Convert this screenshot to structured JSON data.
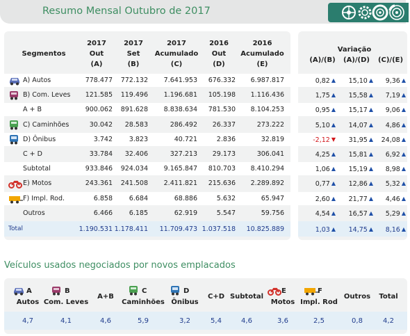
{
  "title": "Resumo Mensal Outubro de 2017",
  "header_icons": [
    "wheel-icon",
    "gear-icon",
    "tire-icon",
    "brake-disc-icon"
  ],
  "table": {
    "seg_header": "Segmentos",
    "columns": [
      {
        "l1": "2017",
        "l2": "Out",
        "l3": "(A)"
      },
      {
        "l1": "2017",
        "l2": "Set",
        "l3": "(B)"
      },
      {
        "l1": "2017",
        "l2": "Acumulado",
        "l3": "(C)"
      },
      {
        "l1": "2016",
        "l2": "Out",
        "l3": "(D)"
      },
      {
        "l1": "2016",
        "l2": "Acumulado",
        "l3": "(E)"
      }
    ],
    "variation_header": "Variação",
    "variation_columns": [
      "(A)/(B)",
      "(A)/(D)",
      "(C)/(E)"
    ],
    "rows": [
      {
        "label": "A) Autos",
        "icon": "car-icon",
        "values": [
          "778.477",
          "772.132",
          "7.641.953",
          "676.332",
          "6.987.817"
        ],
        "var": [
          "0,82",
          "15,10",
          "9,36"
        ],
        "dir": [
          "up",
          "up",
          "up"
        ]
      },
      {
        "label": "B) Com. Leves",
        "icon": "van-icon",
        "values": [
          "121.585",
          "119.496",
          "1.196.681",
          "105.198",
          "1.116.436"
        ],
        "var": [
          "1,75",
          "15,58",
          "7,19"
        ],
        "dir": [
          "up",
          "up",
          "up"
        ]
      },
      {
        "label": "A + B",
        "icon": "",
        "values": [
          "900.062",
          "891.628",
          "8.838.634",
          "781.530",
          "8.104.253"
        ],
        "var": [
          "0,95",
          "15,17",
          "9,06"
        ],
        "dir": [
          "up",
          "up",
          "up"
        ]
      },
      {
        "label": "C) Caminhões",
        "icon": "truck-icon",
        "values": [
          "30.042",
          "28.583",
          "286.492",
          "26.337",
          "273.222"
        ],
        "var": [
          "5,10",
          "14,07",
          "4,86"
        ],
        "dir": [
          "up",
          "up",
          "up"
        ]
      },
      {
        "label": "D) Ônibus",
        "icon": "bus-icon",
        "values": [
          "3.742",
          "3.823",
          "40.721",
          "2.836",
          "32.819"
        ],
        "var": [
          "-2,12",
          "31,95",
          "24,08"
        ],
        "dir": [
          "down",
          "up",
          "up"
        ]
      },
      {
        "label": "C + D",
        "icon": "",
        "values": [
          "33.784",
          "32.406",
          "327.213",
          "29.173",
          "306.041"
        ],
        "var": [
          "4,25",
          "15,81",
          "6,92"
        ],
        "dir": [
          "up",
          "up",
          "up"
        ]
      },
      {
        "label": "Subtotal",
        "icon": "",
        "values": [
          "933.846",
          "924.034",
          "9.165.847",
          "810.703",
          "8.410.294"
        ],
        "var": [
          "1,06",
          "15,19",
          "8,98"
        ],
        "dir": [
          "up",
          "up",
          "up"
        ]
      },
      {
        "label": "E) Motos",
        "icon": "motorcycle-icon",
        "values": [
          "243.361",
          "241.508",
          "2.411.821",
          "215.636",
          "2.289.892"
        ],
        "var": [
          "0,77",
          "12,86",
          "5,32"
        ],
        "dir": [
          "up",
          "up",
          "up"
        ]
      },
      {
        "label": "F) Impl. Rod.",
        "icon": "trailer-icon",
        "values": [
          "6.858",
          "6.684",
          "68.886",
          "5.632",
          "65.947"
        ],
        "var": [
          "2,60",
          "21,77",
          "4,46"
        ],
        "dir": [
          "up",
          "up",
          "up"
        ]
      },
      {
        "label": "Outros",
        "icon": "",
        "values": [
          "6.466",
          "6.185",
          "62.919",
          "5.547",
          "59.756"
        ],
        "var": [
          "4,54",
          "16,57",
          "5,29"
        ],
        "dir": [
          "up",
          "up",
          "up"
        ]
      }
    ],
    "total": {
      "label": "Total",
      "values": [
        "1.190.531",
        "1.178.411",
        "11.709.473",
        "1.037.518",
        "10.825.889"
      ],
      "var": [
        "1,03",
        "14,75",
        "8,16"
      ],
      "dir": [
        "up",
        "up",
        "up"
      ]
    }
  },
  "used": {
    "title": "Veículos usados negociados por novos emplacados",
    "columns": [
      {
        "l1": "A",
        "l2": "Autos",
        "icon": "car-icon",
        "value": "4,7"
      },
      {
        "l1": "B",
        "l2": "Com. Leves",
        "icon": "van-icon",
        "value": "4,1"
      },
      {
        "l1": "A+B",
        "l2": "",
        "icon": "",
        "value": "4,6"
      },
      {
        "l1": "C",
        "l2": "Caminhões",
        "icon": "truck-icon",
        "value": "5,9"
      },
      {
        "l1": "D",
        "l2": "Ônibus",
        "icon": "bus-icon",
        "value": "3,2"
      },
      {
        "l1": "C+D",
        "l2": "",
        "icon": "",
        "value": "5,4"
      },
      {
        "l1": "Subtotal",
        "l2": "",
        "icon": "",
        "value": "4,6"
      },
      {
        "l1": "E",
        "l2": "Motos",
        "icon": "motorcycle-icon",
        "value": "3,6"
      },
      {
        "l1": "F",
        "l2": "Impl. Rod",
        "icon": "trailer-icon",
        "value": "2,5"
      },
      {
        "l1": "Outros",
        "l2": "",
        "icon": "",
        "value": "0,8"
      },
      {
        "l1": "Total",
        "l2": "",
        "icon": "",
        "value": "4,2"
      }
    ]
  },
  "colors": {
    "title_green": "#3e8e62",
    "value_blue": "#1f3b8c",
    "arrow_up": "#1f50a8",
    "arrow_down": "#d2161b",
    "car": "#5a6fb8",
    "van": "#9b3b6a",
    "truck": "#4aa050",
    "bus": "#2f74b5",
    "moto": "#d2312a",
    "trailer": "#f2a600"
  }
}
